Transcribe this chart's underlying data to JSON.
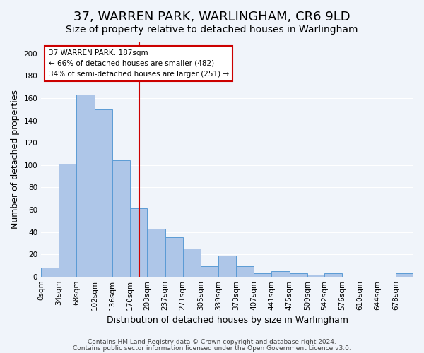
{
  "title": "37, WARREN PARK, WARLINGHAM, CR6 9LD",
  "subtitle": "Size of property relative to detached houses in Warlingham",
  "xlabel": "Distribution of detached houses by size in Warlingham",
  "ylabel": "Number of detached properties",
  "bin_edges": [
    0,
    34,
    68,
    102,
    136,
    170,
    203,
    237,
    271,
    305,
    339,
    373,
    407,
    441,
    475,
    509,
    542,
    576,
    610,
    644,
    678,
    712
  ],
  "bar_heights": [
    8,
    101,
    163,
    150,
    104,
    61,
    43,
    35,
    25,
    9,
    19,
    9,
    3,
    5,
    3,
    2,
    3,
    0,
    0,
    0,
    3
  ],
  "bar_color": "#aec6e8",
  "bar_edge_color": "#5b9bd5",
  "vline_x": 187,
  "vline_color": "#cc0000",
  "ylim": [
    0,
    210
  ],
  "yticks": [
    0,
    20,
    40,
    60,
    80,
    100,
    120,
    140,
    160,
    180,
    200
  ],
  "xtick_labels": [
    "0sqm",
    "34sqm",
    "68sqm",
    "102sqm",
    "136sqm",
    "170sqm",
    "203sqm",
    "237sqm",
    "271sqm",
    "305sqm",
    "339sqm",
    "373sqm",
    "407sqm",
    "441sqm",
    "475sqm",
    "509sqm",
    "542sqm",
    "576sqm",
    "610sqm",
    "644sqm",
    "678sqm"
  ],
  "annotation_title": "37 WARREN PARK: 187sqm",
  "annotation_line1": "← 66% of detached houses are smaller (482)",
  "annotation_line2": "34% of semi-detached houses are larger (251) →",
  "annotation_box_edge": "#cc0000",
  "annotation_box_fill": "white",
  "footer_line1": "Contains HM Land Registry data © Crown copyright and database right 2024.",
  "footer_line2": "Contains public sector information licensed under the Open Government Licence v3.0.",
  "background_color": "#f0f4fa",
  "grid_color": "white",
  "title_fontsize": 13,
  "subtitle_fontsize": 10,
  "axis_label_fontsize": 9,
  "tick_fontsize": 7.5,
  "footer_fontsize": 6.5
}
